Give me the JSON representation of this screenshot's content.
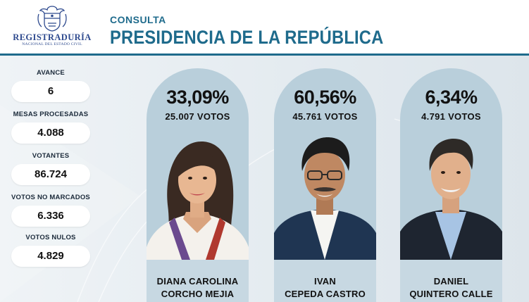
{
  "header": {
    "logo_title": "REGISTRADURÍA",
    "logo_subtitle": "NACIONAL DEL ESTADO CIVIL",
    "kicker": "CONSULTA",
    "title": "PRESIDENCIA DE LA REPÚBLICA"
  },
  "stats": [
    {
      "label": "AVANCE",
      "value": "6"
    },
    {
      "label": "MESAS PROCESADAS",
      "value": "4.088"
    },
    {
      "label": "VOTANTES",
      "value": "86.724"
    },
    {
      "label": "VOTOS NO MARCADOS",
      "value": "6.336"
    },
    {
      "label": "VOTOS NULOS",
      "value": "4.829"
    }
  ],
  "candidates": [
    {
      "percent": "33,09%",
      "votes": "25.007 VOTOS",
      "name_line1": "DIANA CAROLINA",
      "name_line2": "CORCHO MEJIA"
    },
    {
      "percent": "60,56%",
      "votes": "45.761 VOTOS",
      "name_line1": "IVAN",
      "name_line2": "CEPEDA CASTRO"
    },
    {
      "percent": "6,34%",
      "votes": "4.791 VOTOS",
      "name_line1": "DANIEL",
      "name_line2": "QUINTERO CALLE"
    }
  ],
  "colors": {
    "brand": "#1f6b8c",
    "card": "#b9cfdb",
    "name_band": "#c7d8e2"
  },
  "icons": [
    "coat-of-arms-icon"
  ]
}
